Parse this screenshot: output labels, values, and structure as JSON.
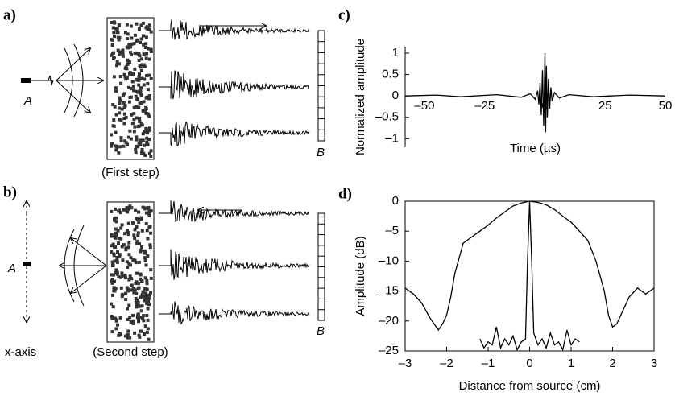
{
  "panels": {
    "a": {
      "label": "a)",
      "source": "A",
      "receiver": "B",
      "caption": "(First step)"
    },
    "b": {
      "label": "b)",
      "source": "A",
      "receiver": "B",
      "caption": "(Second step)",
      "axis": "x-axis"
    }
  },
  "chart_data": [
    {
      "type": "line",
      "label": "c)",
      "box": false,
      "xlabel": "Time (µs)",
      "ylabel": "Normalized amplitude",
      "xlim": [
        -58,
        50
      ],
      "ylim": [
        -1.2,
        1.15
      ],
      "xticks": [
        {
          "value": -50,
          "label": "–50"
        },
        {
          "value": -25,
          "label": "–25"
        },
        0,
        25,
        50
      ],
      "yticks": [
        1,
        0.5,
        0,
        {
          "value": -0.5,
          "label": "–0.5"
        },
        {
          "value": -1,
          "label": "–1"
        }
      ],
      "series": [
        {
          "color": "#000",
          "x": [
            -58,
            -45,
            -35,
            -20,
            -10,
            -6,
            -4,
            -3,
            -2.5,
            -2,
            -1.5,
            -1,
            -0.5,
            0,
            0.3,
            0.6,
            1,
            1.5,
            2,
            2.5,
            3,
            4,
            6,
            10,
            20,
            35,
            50
          ],
          "values": [
            0,
            0.02,
            -0.02,
            0.03,
            -0.03,
            0.05,
            -0.08,
            0.12,
            -0.2,
            0.3,
            -0.45,
            0.6,
            -0.7,
            1,
            -0.85,
            0.7,
            -0.5,
            0.4,
            -0.3,
            0.2,
            -0.12,
            0.08,
            -0.05,
            0.03,
            -0.02,
            0.02,
            0
          ]
        }
      ]
    },
    {
      "type": "line",
      "label": "d)",
      "box": true,
      "xlabel": "Distance from source (cm)",
      "ylabel": "Amplitude (dB)",
      "xlim": [
        -3,
        3
      ],
      "ylim": [
        -25,
        0
      ],
      "xticks": [
        {
          "value": -3,
          "label": "–3"
        },
        {
          "value": -2,
          "label": "–2"
        },
        {
          "value": -1,
          "label": "–1"
        },
        0,
        1,
        2,
        3
      ],
      "yticks": [
        0,
        {
          "value": -5,
          "label": "–5"
        },
        {
          "value": -10,
          "label": "–10"
        },
        {
          "value": -15,
          "label": "–15"
        },
        {
          "value": -20,
          "label": "–20"
        },
        {
          "value": -25,
          "label": "–25"
        }
      ],
      "series": [
        {
          "color": "#000",
          "x": [
            -3,
            -2.8,
            -2.6,
            -2.4,
            -2.2,
            -2.1,
            -2,
            -1.9,
            -1.8,
            -1.6,
            -1.4,
            -1.2,
            -1,
            -0.8,
            -0.6,
            -0.4,
            -0.2,
            0,
            0.2,
            0.4,
            0.6,
            0.8,
            1,
            1.2,
            1.4,
            1.6,
            1.8,
            1.9,
            2,
            2.1,
            2.2,
            2.4,
            2.6,
            2.8,
            3
          ],
          "values": [
            -14.5,
            -15.5,
            -17,
            -19.5,
            -21.5,
            -20.5,
            -19,
            -16,
            -12,
            -7,
            -6,
            -5,
            -4,
            -2.8,
            -1.8,
            -0.8,
            -0.3,
            0,
            -0.2,
            -0.6,
            -1.4,
            -2.5,
            -3.5,
            -5,
            -6.5,
            -10,
            -15,
            -19,
            -21,
            -20.5,
            -19,
            -16,
            -14.5,
            -15.5,
            -14.5
          ]
        },
        {
          "color": "#000",
          "x": [
            -1.2,
            -1.1,
            -1,
            -0.9,
            -0.8,
            -0.7,
            -0.6,
            -0.5,
            -0.4,
            -0.3,
            -0.2,
            -0.1,
            -0.05,
            0,
            0.05,
            0.1,
            0.2,
            0.3,
            0.4,
            0.5,
            0.6,
            0.7,
            0.8,
            0.9,
            1,
            1.1,
            1.2
          ],
          "values": [
            -23,
            -24.5,
            -23.5,
            -24,
            -21,
            -24.5,
            -23,
            -24,
            -22.5,
            -24.8,
            -23.5,
            -23,
            -10,
            0,
            -10,
            -22,
            -24,
            -23,
            -24.5,
            -22,
            -24,
            -23.5,
            -24.8,
            -21.5,
            -24,
            -23,
            -23.5
          ]
        }
      ]
    }
  ]
}
